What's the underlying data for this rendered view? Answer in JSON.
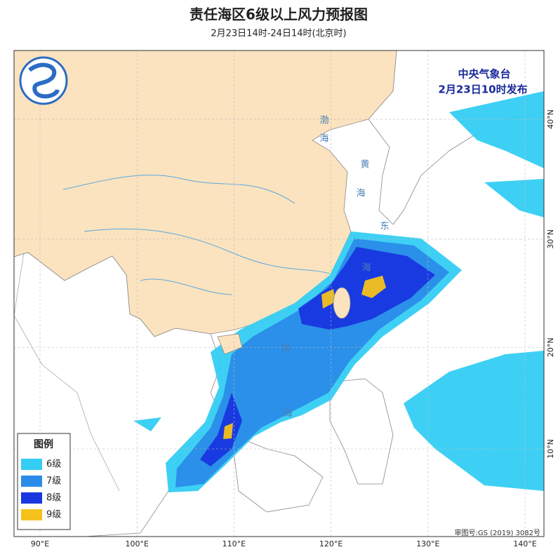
{
  "header": {
    "title": "责任海区6级以上风力预报图",
    "subtitle": "2月23日14时-24日14时(北京时)"
  },
  "issuer": {
    "name": "中央气象台",
    "time": "2月23日10时发布"
  },
  "legend": {
    "title": "图例",
    "items": [
      {
        "label": "6级",
        "color": "#34cdf3"
      },
      {
        "label": "7级",
        "color": "#2a8ce8"
      },
      {
        "label": "8级",
        "color": "#1836e0"
      },
      {
        "label": "9级",
        "color": "#f5c21b"
      }
    ]
  },
  "axes": {
    "longitude": [
      {
        "value": 90,
        "label": "90°E"
      },
      {
        "value": 100,
        "label": "100°E"
      },
      {
        "value": 110,
        "label": "110°E"
      },
      {
        "value": 120,
        "label": "120°E"
      },
      {
        "value": 130,
        "label": "130°E"
      },
      {
        "value": 140,
        "label": "140°E"
      }
    ],
    "latitude": [
      {
        "value": 10,
        "label": "10°N"
      },
      {
        "value": 20,
        "label": "20°N"
      },
      {
        "value": 30,
        "label": "30°N"
      },
      {
        "value": 40,
        "label": "40°N"
      }
    ]
  },
  "sea_labels": [
    [
      "渤",
      "海"
    ],
    [
      "黄",
      "海"
    ],
    [
      "东",
      "海"
    ],
    [
      "南",
      "海"
    ]
  ],
  "approval": "审图号:GS (2019) 3082号"
}
